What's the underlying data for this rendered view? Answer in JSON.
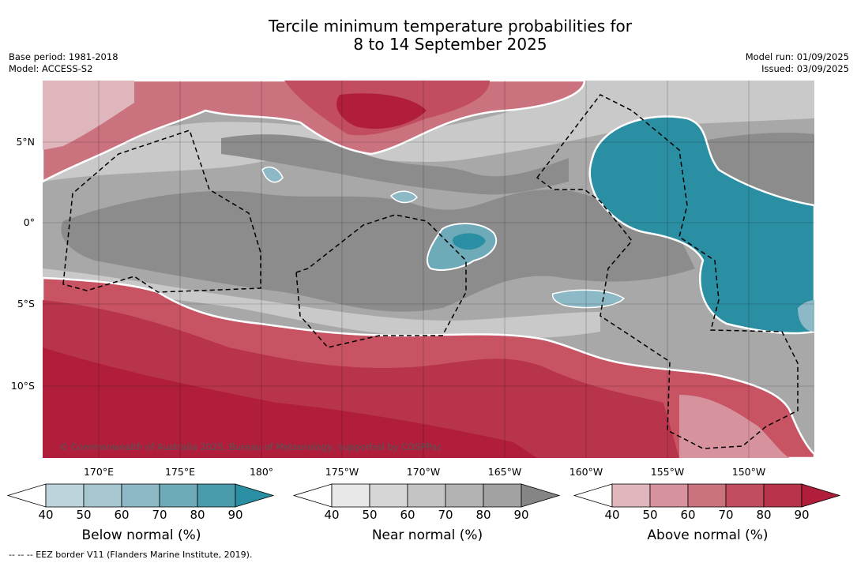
{
  "title_line1": "Tercile minimum temperature probabilities for",
  "title_line2": "8 to 14 September 2025",
  "meta_left": {
    "base_period": "Base period: 1981-2018",
    "model": "Model: ACCESS-S2"
  },
  "meta_right": {
    "model_run": "Model run: 01/09/2025",
    "issued": "Issued: 03/09/2025"
  },
  "lat_labels": [
    "5°N",
    "0°",
    "5°S",
    "10°S"
  ],
  "lon_labels": [
    "170°E",
    "175°E",
    "180°",
    "175°W",
    "170°W",
    "165°W",
    "160°W",
    "155°W",
    "150°W"
  ],
  "copyright": "© Commonwealth of Australia 2025, Bureau of Meteorology, supported by COSPPac",
  "legends": [
    {
      "title": "Below normal (%)",
      "ticks": [
        "40",
        "50",
        "60",
        "70",
        "80",
        "90"
      ],
      "colors": [
        "#ffffff",
        "#bcd4dc",
        "#a6c7d0",
        "#8cb9c5",
        "#6eaab8",
        "#4a9bac",
        "#2a8fa3"
      ]
    },
    {
      "title": "Near normal (%)",
      "ticks": [
        "40",
        "50",
        "60",
        "70",
        "80",
        "90"
      ],
      "colors": [
        "#ffffff",
        "#e8e8e8",
        "#d6d6d6",
        "#c4c4c4",
        "#b3b3b3",
        "#a2a2a2",
        "#858585"
      ]
    },
    {
      "title": "Above normal (%)",
      "ticks": [
        "40",
        "50",
        "60",
        "70",
        "80",
        "90"
      ],
      "colors": [
        "#ffffff",
        "#e0b6bd",
        "#d6939e",
        "#cb727f",
        "#c24d60",
        "#b8344a",
        "#b01e3c"
      ]
    }
  ],
  "footnote": "--  --  -- EEZ border V11 (Flanders Marine Institute, 2019)."
}
